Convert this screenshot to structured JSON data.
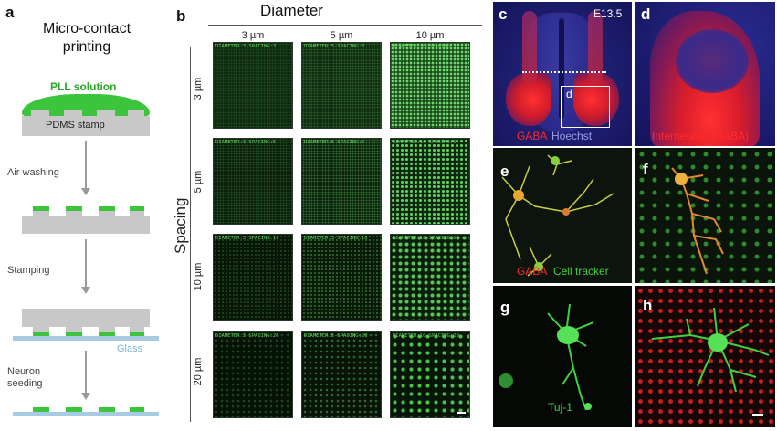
{
  "panel_a": {
    "letter": "a",
    "title_line1": "Micro-contact",
    "title_line2": "printing",
    "pll_label": "PLL solution",
    "stamp_label": "PDMS stamp",
    "step1": "Air washing",
    "step2": "Stamping",
    "glass_label": "Glass",
    "step3_line1": "Neuron",
    "step3_line2": "seeding"
  },
  "panel_b": {
    "letter": "b",
    "top_title": "Diameter",
    "side_title": "Spacing",
    "col_headers": [
      "3 µm",
      "5 µm",
      "10 µm"
    ],
    "row_headers": [
      "3 µm",
      "5 µm",
      "10 µm",
      "20 µm"
    ],
    "cells": [
      [
        "DIAMETER:3-SPACING:3",
        "DIAMETER:5-SPACING:3",
        "DIAMETER:10-SPACING:3"
      ],
      [
        "DIAMETER:3-SPACING:5",
        "DIAMETER:5-SPACING:5",
        "DIAMETER:10-SPACING:5"
      ],
      [
        "DIAMETER:3-SPACING:10",
        "DIAMETER:5-SPACING:10",
        "DIAMETER:10-SPACING:10"
      ],
      [
        "DIAMETER:3-SPACING:20",
        "DIAMETER:5-SPACING:20",
        "DIAMETER:10-SPACING:20"
      ]
    ]
  },
  "panel_c": {
    "letter": "c",
    "stage": "E13.5",
    "inset": "d",
    "label_gaba": "GABA",
    "label_hoechst": "Hoechst"
  },
  "panel_d": {
    "letter": "d",
    "label": "Interneuron (GABA)"
  },
  "panel_e": {
    "letter": "e",
    "label_gaba": "GABA",
    "label_tracker": "Cell tracker"
  },
  "panel_f": {
    "letter": "f"
  },
  "panel_g": {
    "letter": "g",
    "label": "Tuj-1"
  },
  "panel_h": {
    "letter": "h"
  },
  "colors": {
    "gaba_red": "#e0202a",
    "hoechst_blue": "#3b3bd0",
    "green": "#3dc43d",
    "glass": "#a7cbe3",
    "pdms": "#c8c8c8"
  }
}
